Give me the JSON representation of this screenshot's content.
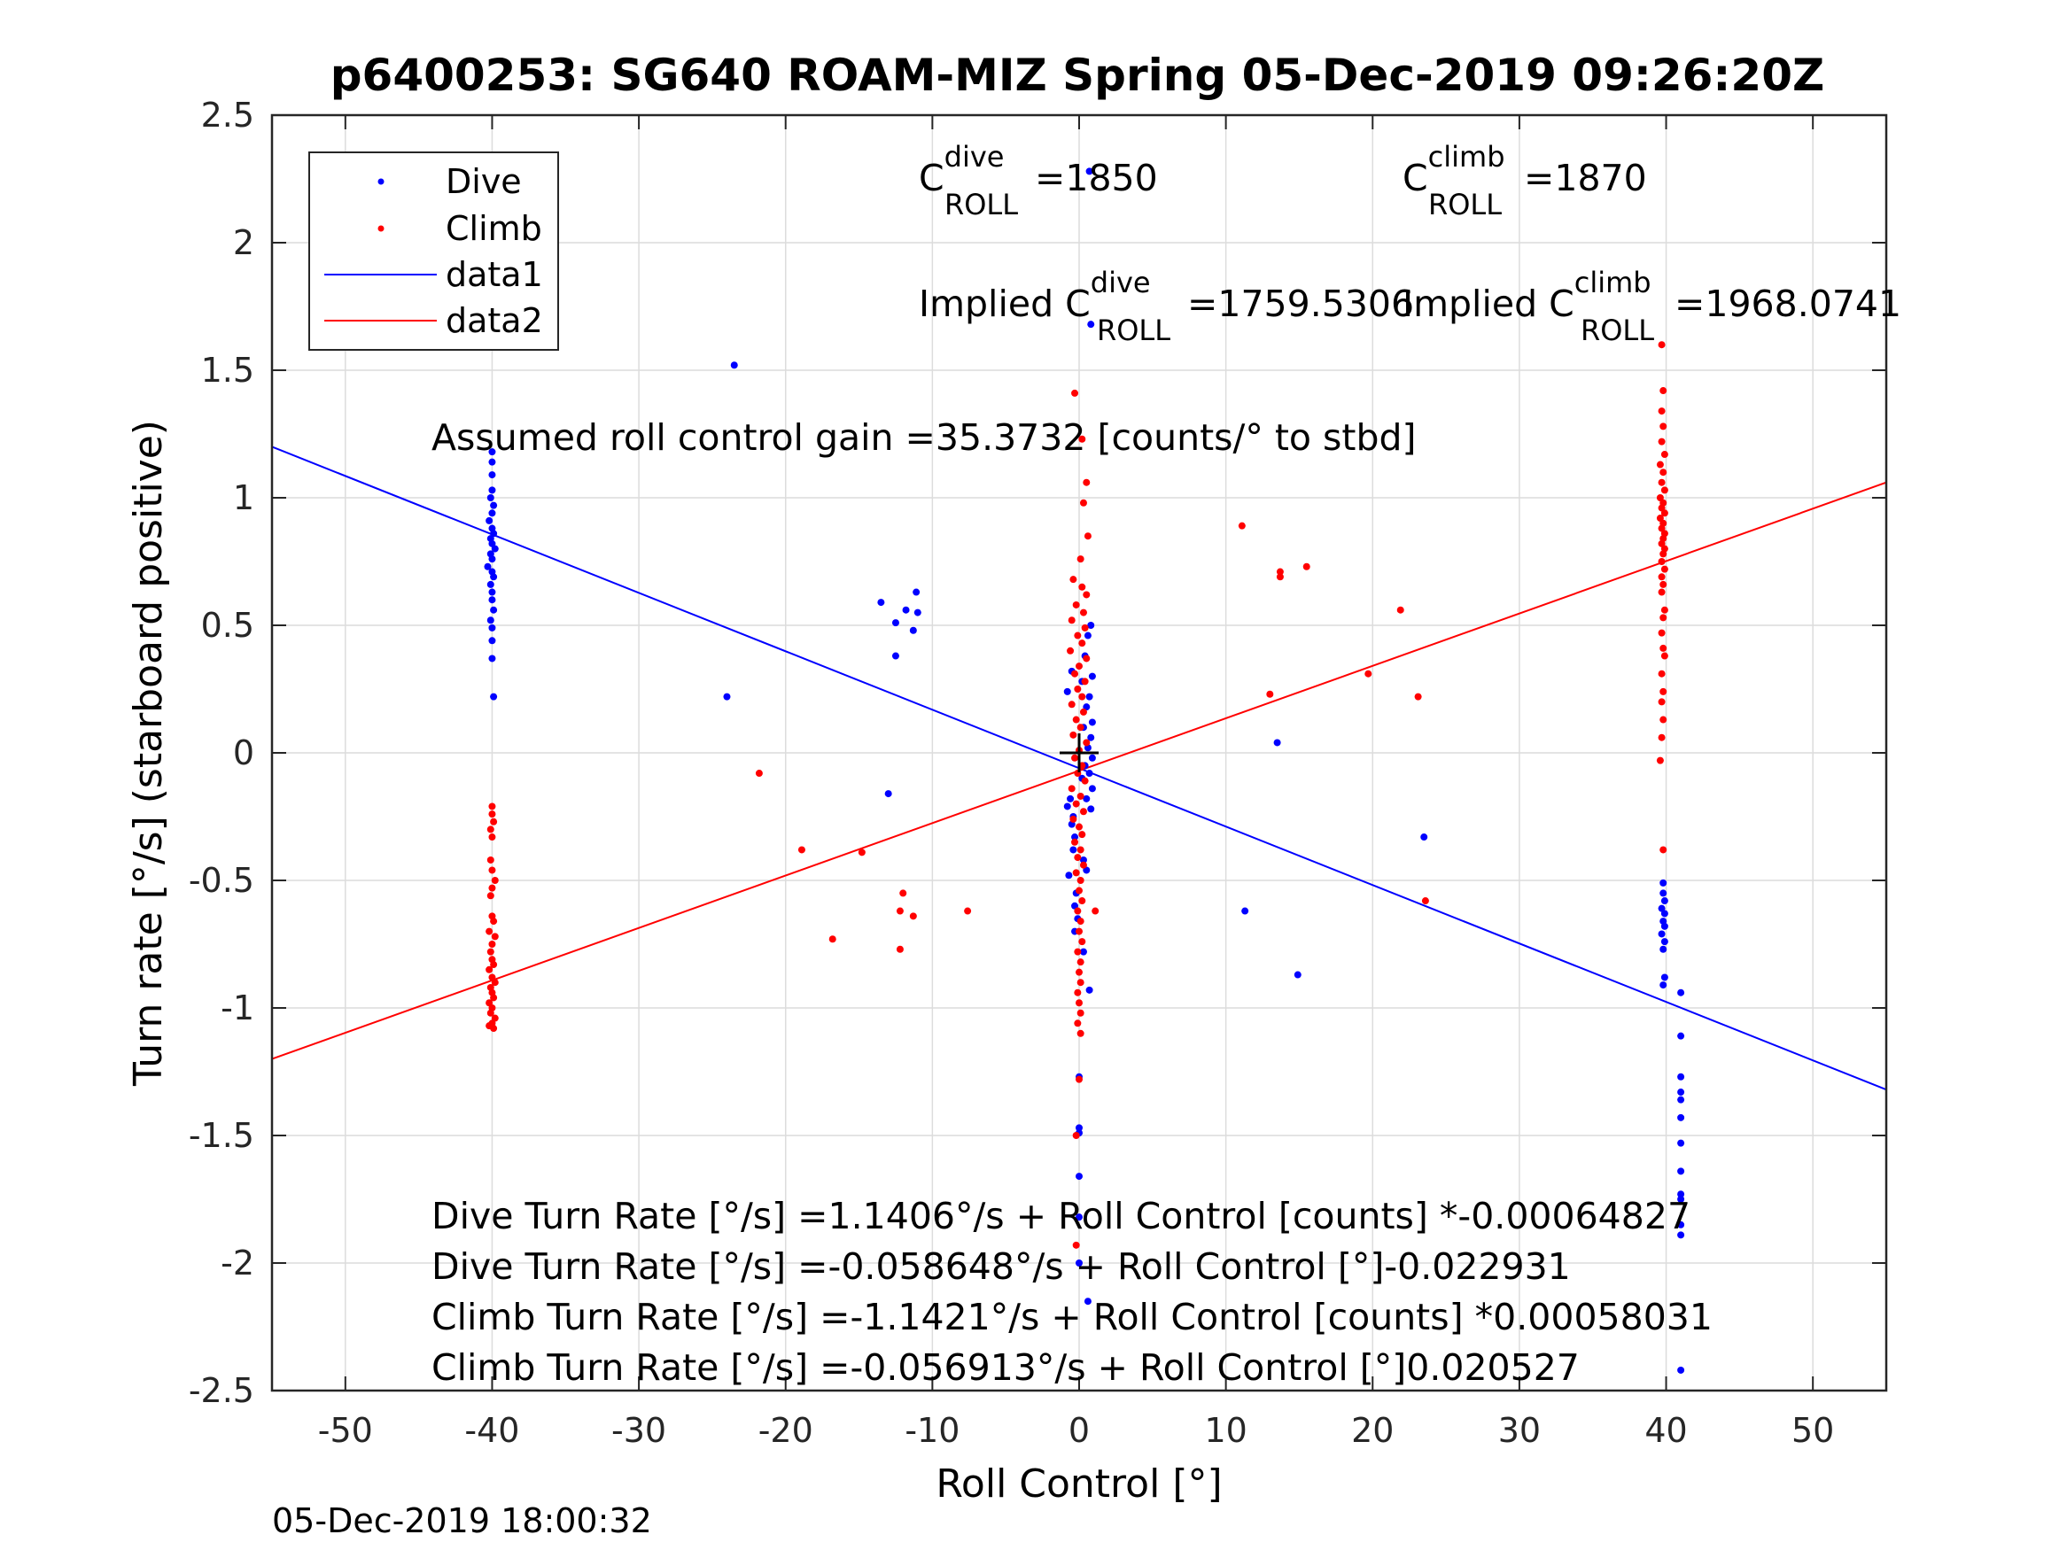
{
  "chart_data": {
    "type": "scatter",
    "title": "p6400253: SG640 ROAM-MIZ Spring 05-Dec-2019 09:26:20Z",
    "xlabel": "Roll Control [°]",
    "ylabel": "Turn rate [°/s] (starboard positive)",
    "xlim": [
      -55,
      55
    ],
    "ylim": [
      -2.5,
      2.5
    ],
    "xticks": [
      -50,
      -40,
      -30,
      -20,
      -10,
      0,
      10,
      20,
      30,
      40,
      50
    ],
    "xtick_labels": [
      "-50",
      "-40",
      "-30",
      "-20",
      "-10",
      "0",
      "10",
      "20",
      "30",
      "40",
      "50"
    ],
    "yticks": [
      -2.5,
      -2,
      -1.5,
      -1,
      -0.5,
      0,
      0.5,
      1,
      1.5,
      2,
      2.5
    ],
    "ytick_labels": [
      "-2.5",
      "-2",
      "-1.5",
      "-1",
      "-0.5",
      "0",
      "0.5",
      "1",
      "1.5",
      "2",
      "2.5"
    ],
    "grid": true,
    "legend_position": "top-left",
    "legend": [
      "Dive",
      "Climb",
      "data1",
      "data2"
    ],
    "colors": {
      "dive": "#0000ff",
      "climb": "#ff0000",
      "axes": "#262626",
      "grid": "#dcdcdc"
    },
    "series": [
      {
        "name": "Dive",
        "kind": "points",
        "color": "#0000ff",
        "points": [
          [
            -40,
            1.18
          ],
          [
            -40,
            1.14
          ],
          [
            -40,
            1.09
          ],
          [
            -40,
            1.03
          ],
          [
            -40.1,
            1.0
          ],
          [
            -39.9,
            0.97
          ],
          [
            -40,
            0.94
          ],
          [
            -40.2,
            0.91
          ],
          [
            -40,
            0.88
          ],
          [
            -39.9,
            0.86
          ],
          [
            -40.1,
            0.84
          ],
          [
            -40,
            0.82
          ],
          [
            -39.8,
            0.8
          ],
          [
            -40.1,
            0.78
          ],
          [
            -40,
            0.76
          ],
          [
            -40.3,
            0.73
          ],
          [
            -40,
            0.71
          ],
          [
            -39.9,
            0.69
          ],
          [
            -40.1,
            0.66
          ],
          [
            -40,
            0.63
          ],
          [
            -40,
            0.6
          ],
          [
            -39.9,
            0.56
          ],
          [
            -40.1,
            0.52
          ],
          [
            -40,
            0.49
          ],
          [
            -40,
            0.44
          ],
          [
            -40,
            0.37
          ],
          [
            -39.9,
            0.22
          ],
          [
            -23.5,
            1.52
          ],
          [
            -24,
            0.22
          ],
          [
            -13.5,
            0.59
          ],
          [
            -12.5,
            0.51
          ],
          [
            -11.8,
            0.56
          ],
          [
            -11,
            0.55
          ],
          [
            -11.3,
            0.48
          ],
          [
            -11.1,
            0.63
          ],
          [
            -12.5,
            0.38
          ],
          [
            -13,
            -0.16
          ],
          [
            -0.5,
            0.32
          ],
          [
            -0.8,
            0.24
          ],
          [
            0.8,
            0.5
          ],
          [
            0.6,
            0.46
          ],
          [
            0.4,
            0.38
          ],
          [
            0.9,
            0.3
          ],
          [
            0.2,
            0.28
          ],
          [
            0.7,
            0.22
          ],
          [
            0.5,
            0.18
          ],
          [
            0.9,
            0.12
          ],
          [
            0.3,
            0.1
          ],
          [
            0.8,
            0.06
          ],
          [
            0.6,
            0.02
          ],
          [
            0.9,
            -0.02
          ],
          [
            0.4,
            -0.05
          ],
          [
            0.7,
            -0.08
          ],
          [
            0.2,
            -0.1
          ],
          [
            0.9,
            -0.14
          ],
          [
            0.5,
            -0.18
          ],
          [
            0.8,
            -0.22
          ],
          [
            -0.6,
            -0.18
          ],
          [
            -0.8,
            -0.21
          ],
          [
            -0.4,
            -0.25
          ],
          [
            -0.5,
            -0.28
          ],
          [
            -0.3,
            -0.33
          ],
          [
            -0.4,
            -0.38
          ],
          [
            0.3,
            -0.42
          ],
          [
            -0.7,
            -0.48
          ],
          [
            0.5,
            -0.46
          ],
          [
            -0.2,
            -0.55
          ],
          [
            -0.3,
            -0.6
          ],
          [
            -0.1,
            -0.65
          ],
          [
            -0.3,
            -0.7
          ],
          [
            0.3,
            -0.78
          ],
          [
            0.7,
            -0.93
          ],
          [
            0.7,
            2.28
          ],
          [
            0.8,
            1.68
          ],
          [
            0,
            -1.27
          ],
          [
            0,
            -1.47
          ],
          [
            0,
            -1.49
          ],
          [
            0,
            -1.66
          ],
          [
            0,
            -1.82
          ],
          [
            0,
            -2.0
          ],
          [
            0.6,
            -2.15
          ],
          [
            13.5,
            0.04
          ],
          [
            11.3,
            -0.62
          ],
          [
            14.9,
            -0.87
          ],
          [
            23.5,
            -0.33
          ],
          [
            39.8,
            -0.51
          ],
          [
            39.8,
            -0.55
          ],
          [
            39.9,
            -0.58
          ],
          [
            39.7,
            -0.61
          ],
          [
            39.9,
            -0.63
          ],
          [
            39.8,
            -0.66
          ],
          [
            39.9,
            -0.68
          ],
          [
            39.7,
            -0.71
          ],
          [
            39.9,
            -0.74
          ],
          [
            39.8,
            -0.77
          ],
          [
            39.9,
            -0.88
          ],
          [
            39.8,
            -0.91
          ],
          [
            41,
            -0.94
          ],
          [
            41,
            -1.11
          ],
          [
            41,
            -1.27
          ],
          [
            41,
            -1.33
          ],
          [
            41,
            -1.36
          ],
          [
            41,
            -1.43
          ],
          [
            41,
            -1.53
          ],
          [
            41,
            -1.64
          ],
          [
            41,
            -1.73
          ],
          [
            41,
            -1.75
          ],
          [
            41,
            -1.85
          ],
          [
            41,
            -1.89
          ],
          [
            41,
            -2.42
          ]
        ]
      },
      {
        "name": "Climb",
        "kind": "points",
        "color": "#ff0000",
        "points": [
          [
            -40,
            -0.21
          ],
          [
            -40,
            -0.24
          ],
          [
            -39.9,
            -0.27
          ],
          [
            -40.1,
            -0.3
          ],
          [
            -40,
            -0.33
          ],
          [
            -40.1,
            -0.42
          ],
          [
            -40,
            -0.46
          ],
          [
            -39.8,
            -0.5
          ],
          [
            -40,
            -0.53
          ],
          [
            -40.1,
            -0.56
          ],
          [
            -40,
            -0.64
          ],
          [
            -39.9,
            -0.66
          ],
          [
            -40.2,
            -0.7
          ],
          [
            -39.8,
            -0.72
          ],
          [
            -40,
            -0.75
          ],
          [
            -40.1,
            -0.78
          ],
          [
            -40,
            -0.81
          ],
          [
            -39.9,
            -0.83
          ],
          [
            -40.2,
            -0.85
          ],
          [
            -40,
            -0.88
          ],
          [
            -39.8,
            -0.9
          ],
          [
            -40.1,
            -0.92
          ],
          [
            -40,
            -0.94
          ],
          [
            -39.9,
            -0.96
          ],
          [
            -40.2,
            -0.98
          ],
          [
            -40,
            -1.0
          ],
          [
            -40.1,
            -1.02
          ],
          [
            -39.8,
            -1.04
          ],
          [
            -40,
            -1.06
          ],
          [
            -40.2,
            -1.07
          ],
          [
            -39.9,
            -1.08
          ],
          [
            -21.8,
            -0.08
          ],
          [
            -18.9,
            -0.38
          ],
          [
            -14.8,
            -0.39
          ],
          [
            -16.8,
            -0.73
          ],
          [
            -12,
            -0.55
          ],
          [
            -12.2,
            -0.62
          ],
          [
            -11.3,
            -0.64
          ],
          [
            -12.2,
            -0.77
          ],
          [
            -7.6,
            -0.62
          ],
          [
            -0.3,
            1.41
          ],
          [
            0.2,
            1.23
          ],
          [
            0.5,
            1.06
          ],
          [
            0.3,
            0.98
          ],
          [
            0.6,
            0.85
          ],
          [
            0.1,
            0.76
          ],
          [
            -0.4,
            0.68
          ],
          [
            0.2,
            0.65
          ],
          [
            0.5,
            0.62
          ],
          [
            -0.2,
            0.58
          ],
          [
            0.3,
            0.55
          ],
          [
            -0.5,
            0.52
          ],
          [
            0.4,
            0.49
          ],
          [
            -0.1,
            0.46
          ],
          [
            0.2,
            0.43
          ],
          [
            -0.6,
            0.4
          ],
          [
            0.5,
            0.37
          ],
          [
            0,
            0.34
          ],
          [
            -0.3,
            0.31
          ],
          [
            0.4,
            0.28
          ],
          [
            -0.1,
            0.25
          ],
          [
            0.2,
            0.22
          ],
          [
            -0.5,
            0.19
          ],
          [
            0.3,
            0.16
          ],
          [
            -0.2,
            0.13
          ],
          [
            0.1,
            0.1
          ],
          [
            -0.4,
            0.07
          ],
          [
            0.5,
            0.04
          ],
          [
            0,
            0.01
          ],
          [
            -0.3,
            -0.02
          ],
          [
            0.2,
            -0.05
          ],
          [
            -0.1,
            -0.08
          ],
          [
            0.4,
            -0.11
          ],
          [
            -0.5,
            -0.14
          ],
          [
            0.1,
            -0.17
          ],
          [
            -0.2,
            -0.2
          ],
          [
            0.3,
            -0.23
          ],
          [
            -0.4,
            -0.26
          ],
          [
            0,
            -0.29
          ],
          [
            0.2,
            -0.32
          ],
          [
            -0.3,
            -0.35
          ],
          [
            0.1,
            -0.38
          ],
          [
            -0.1,
            -0.41
          ],
          [
            0.3,
            -0.44
          ],
          [
            -0.2,
            -0.47
          ],
          [
            0.1,
            -0.5
          ],
          [
            0,
            -0.54
          ],
          [
            0.2,
            -0.58
          ],
          [
            -0.1,
            -0.62
          ],
          [
            0.1,
            -0.66
          ],
          [
            0,
            -0.7
          ],
          [
            0.2,
            -0.74
          ],
          [
            -0.1,
            -0.78
          ],
          [
            0.1,
            -0.82
          ],
          [
            0,
            -0.86
          ],
          [
            0.1,
            -0.9
          ],
          [
            -0.1,
            -0.94
          ],
          [
            0,
            -0.98
          ],
          [
            0.1,
            -1.02
          ],
          [
            -0.1,
            -1.06
          ],
          [
            0.1,
            -1.1
          ],
          [
            1.1,
            -0.62
          ],
          [
            0,
            -1.28
          ],
          [
            -0.2,
            -1.5
          ],
          [
            -0.2,
            -1.93
          ],
          [
            11.1,
            0.89
          ],
          [
            13.7,
            0.71
          ],
          [
            13.7,
            0.69
          ],
          [
            15.5,
            0.73
          ],
          [
            13,
            0.23
          ],
          [
            19.7,
            0.31
          ],
          [
            21.9,
            0.56
          ],
          [
            23.1,
            0.22
          ],
          [
            23.6,
            -0.58
          ],
          [
            39.7,
            1.6
          ],
          [
            39.8,
            1.42
          ],
          [
            39.7,
            1.34
          ],
          [
            39.8,
            1.28
          ],
          [
            39.7,
            1.22
          ],
          [
            39.9,
            1.17
          ],
          [
            39.6,
            1.13
          ],
          [
            39.8,
            1.1
          ],
          [
            39.7,
            1.06
          ],
          [
            39.9,
            1.03
          ],
          [
            39.6,
            1.0
          ],
          [
            39.8,
            0.98
          ],
          [
            39.7,
            0.96
          ],
          [
            39.9,
            0.94
          ],
          [
            39.6,
            0.92
          ],
          [
            39.8,
            0.9
          ],
          [
            39.7,
            0.88
          ],
          [
            39.9,
            0.86
          ],
          [
            39.8,
            0.84
          ],
          [
            39.7,
            0.82
          ],
          [
            39.9,
            0.8
          ],
          [
            39.8,
            0.78
          ],
          [
            39.7,
            0.75
          ],
          [
            39.9,
            0.72
          ],
          [
            39.7,
            0.69
          ],
          [
            39.8,
            0.66
          ],
          [
            39.7,
            0.63
          ],
          [
            39.9,
            0.56
          ],
          [
            39.8,
            0.53
          ],
          [
            39.7,
            0.47
          ],
          [
            39.8,
            0.41
          ],
          [
            39.9,
            0.38
          ],
          [
            39.7,
            0.31
          ],
          [
            39.8,
            0.24
          ],
          [
            39.7,
            0.2
          ],
          [
            39.8,
            0.13
          ],
          [
            39.7,
            0.06
          ],
          [
            39.6,
            -0.03
          ],
          [
            39.8,
            -0.38
          ]
        ]
      },
      {
        "name": "data1",
        "kind": "line",
        "color": "#0000ff",
        "x": [
          -55,
          55
        ],
        "y": [
          1.2,
          -1.32
        ]
      },
      {
        "name": "data2",
        "kind": "line",
        "color": "#ff0000",
        "x": [
          -55,
          55
        ],
        "y": [
          -1.2,
          1.06
        ]
      }
    ],
    "marker": {
      "type": "plus",
      "color": "#000000",
      "x": 0,
      "y": 0
    },
    "annotations": {
      "c_dive_main": "C",
      "c_dive_sup": "dive",
      "c_dive_sub": "ROLL",
      "c_dive_value": "=1850",
      "c_climb_main": "C",
      "c_climb_sup": "climb",
      "c_climb_sub": "ROLL",
      "c_climb_value": "=1870",
      "implied_dive_main": "Implied C",
      "implied_dive_sup": "dive",
      "implied_dive_sub": "ROLL",
      "implied_dive_value": "=1759.5306",
      "implied_climb_main": "Implied C",
      "implied_climb_sup": "climb",
      "implied_climb_sub": "ROLL",
      "implied_climb_value": "=1968.0741",
      "gain": "Assumed roll control gain =35.3732 [counts/° to stbd]",
      "fit_lines": [
        "Dive Turn Rate [°/s] =1.1406°/s + Roll Control [counts] *-0.00064827",
        "Dive Turn Rate [°/s] =-0.058648°/s + Roll Control [°]-0.022931",
        "Climb Turn Rate [°/s] =-1.1421°/s + Roll Control [counts] *0.00058031",
        "Climb Turn Rate [°/s] =-0.056913°/s + Roll Control [°]0.020527"
      ]
    },
    "timestamp": "05-Dec-2019 18:00:32"
  }
}
